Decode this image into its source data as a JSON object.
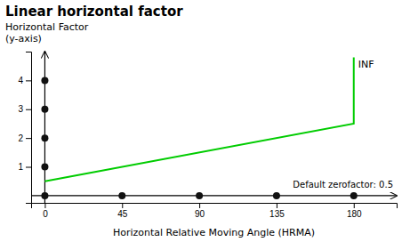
{
  "chart_data": {
    "type": "line",
    "title": "Linear horizontal factor",
    "x_label": "Horizontal Relative Moving Angle (HRMA)",
    "y_label": [
      "Horizontal Factor",
      "(y-axis)"
    ],
    "annotations": [
      "Default zerofactor: 0.5",
      "INF"
    ],
    "series": [
      {
        "type": "line",
        "color": "#00cc00",
        "x": [
          0,
          180,
          180
        ],
        "values": [
          0.5,
          2.5,
          4.8
        ]
      },
      {
        "type": "scatter",
        "color": "#111111",
        "x": [
          0,
          0,
          0,
          0
        ],
        "values": [
          1,
          2,
          3,
          4
        ]
      },
      {
        "type": "scatter",
        "color": "#111111",
        "x": [
          0,
          45,
          90,
          135,
          180
        ],
        "values": [
          0,
          0,
          0,
          0,
          0
        ]
      }
    ],
    "xlim": [
      -8,
      205
    ],
    "ylim": [
      -0.25,
      5.0
    ],
    "xticks": [
      0,
      45,
      90,
      135,
      180
    ],
    "yticks": [
      1,
      2,
      3,
      4
    ],
    "grid": false
  }
}
